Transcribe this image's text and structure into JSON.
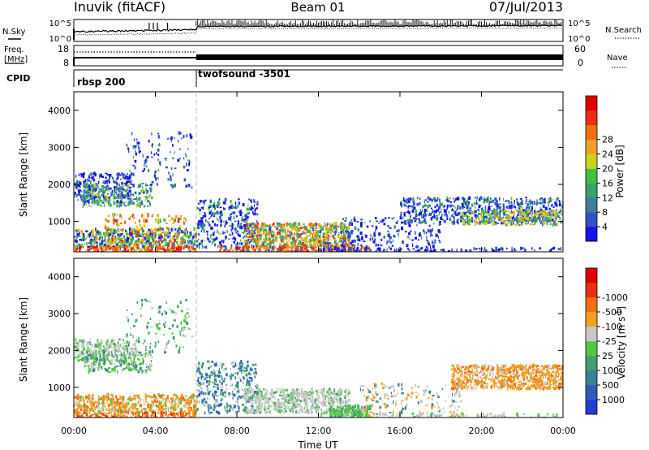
{
  "header": {
    "station": "Inuvik (fitACF)",
    "beam": "Beam 01",
    "date": "07/Jul/2013"
  },
  "top_panels": {
    "nsky_label": "N.Sky",
    "nsearch_label": "N.Search",
    "freq_label_1": "Freq.",
    "freq_label_2": "[MHz]",
    "nave_label": "Nave",
    "cpid_label": "CPID",
    "noise_ticks_left": [
      "10^5",
      "10^0"
    ],
    "noise_ticks_right": [
      "10^5",
      "10^0"
    ],
    "freq_ticks": [
      "18",
      "8"
    ],
    "nave_ticks": [
      "60",
      "0"
    ],
    "cpid_segments": [
      {
        "name": "rbsp 200",
        "start_hour": 0
      },
      {
        "name": "twofsound -3501",
        "start_hour": 6
      }
    ]
  },
  "chart_data": [
    {
      "type": "heatmap",
      "name": "power",
      "ylabel": "Slant Range [km]",
      "ylim": [
        180,
        4500
      ],
      "yticks": [
        1000,
        2000,
        3000,
        4000
      ],
      "xlim_hours": [
        0,
        24
      ],
      "colorbar": {
        "label": "Power [dB]",
        "range": [
          0,
          32
        ],
        "ticks": [
          "4",
          "8",
          "12",
          "16",
          "20",
          "24",
          "28"
        ],
        "colors": [
          "#1414e6",
          "#2f52c8",
          "#3c7f9a",
          "#3ca06a",
          "#40c040",
          "#c8d020",
          "#f0a020",
          "#f07010",
          "#e83010",
          "#e00000"
        ]
      }
    },
    {
      "type": "heatmap",
      "name": "velocity",
      "ylabel": "Slant Range [km]",
      "ylim": [
        180,
        4500
      ],
      "yticks": [
        1000,
        2000,
        3000,
        4000
      ],
      "xlim_hours": [
        0,
        24
      ],
      "xlabel": "Time UT",
      "xticks": [
        "00:00",
        "04:00",
        "08:00",
        "12:00",
        "16:00",
        "20:00",
        "00:00"
      ],
      "colorbar": {
        "label": "Velocity [m s",
        "label_sup": "-1",
        "label_end": "]",
        "ticks": [
          "1000",
          "500",
          "100",
          "25",
          "-25",
          "-100",
          "-500",
          "-1000"
        ],
        "colors": [
          "#2040d0",
          "#305ab8",
          "#3c7f9a",
          "#40a070",
          "#50c840",
          "#c8c8c8",
          "#f0a020",
          "#f07010",
          "#e83010",
          "#e00000"
        ]
      }
    }
  ]
}
